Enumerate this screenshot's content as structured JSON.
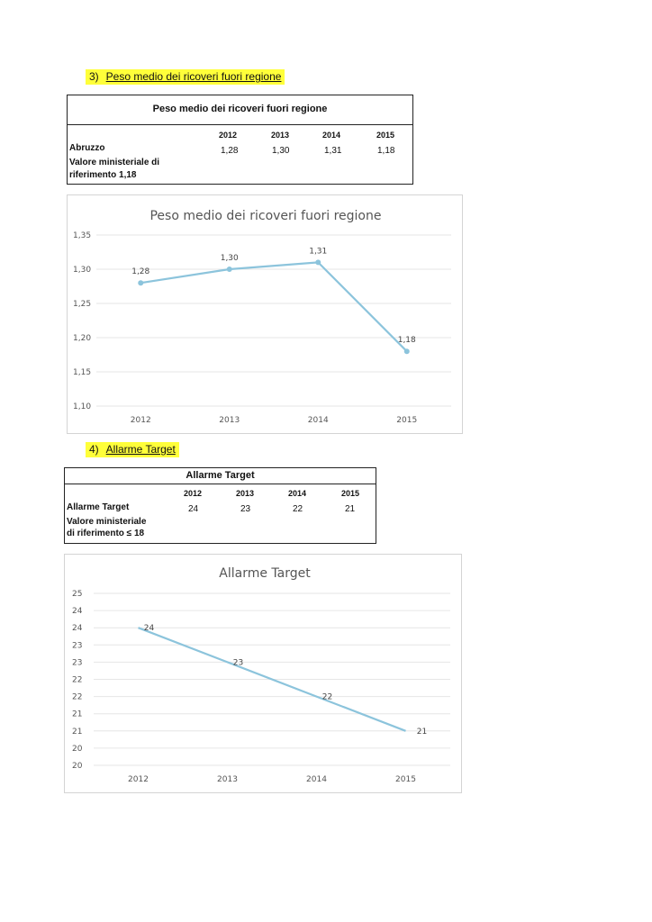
{
  "section3": {
    "number": "3)",
    "title": "Peso medio dei ricoveri fuori regione",
    "table": {
      "title": "Peso medio dei ricoveri fuori regione",
      "years": [
        "2012",
        "2013",
        "2014",
        "2015"
      ],
      "row_label": "Abruzzo",
      "row_values": [
        "1,28",
        "1,30",
        "1,31",
        "1,18"
      ],
      "ref_label_1": "Valore ministeriale di",
      "ref_label_2": "riferimento 1,18"
    }
  },
  "section4": {
    "number": "4)",
    "title": "Allarme Target",
    "table": {
      "title": "Allarme Target",
      "years": [
        "2012",
        "2013",
        "2014",
        "2015"
      ],
      "row_label": "Allarme Target",
      "row_values": [
        "24",
        "23",
        "22",
        "21"
      ],
      "ref_label_1": "Valore ministeriale",
      "ref_label_2": "di riferimento ≤ 18"
    }
  },
  "chart_data": [
    {
      "type": "line",
      "title": "Peso medio dei ricoveri fuori regione",
      "categories": [
        "2012",
        "2013",
        "2014",
        "2015"
      ],
      "values": [
        1.28,
        1.3,
        1.31,
        1.18
      ],
      "data_labels": [
        "1,28",
        "1,30",
        "1,31",
        "1,18"
      ],
      "yticks": [
        1.35,
        1.3,
        1.25,
        1.2,
        1.15,
        1.1
      ],
      "ytick_labels": [
        "1,35",
        "1,30",
        "1,25",
        "1,20",
        "1,15",
        "1,10"
      ],
      "ylim": [
        1.1,
        1.35
      ],
      "grid": true,
      "markers": true,
      "color": "#8cc4dc"
    },
    {
      "type": "line",
      "title": "Allarme Target",
      "categories": [
        "2012",
        "2013",
        "2014",
        "2015"
      ],
      "values": [
        24,
        23,
        22,
        21
      ],
      "data_labels": [
        "24",
        "23",
        "22",
        "21"
      ],
      "ytick_labels": [
        "25",
        "24",
        "24",
        "23",
        "23",
        "22",
        "22",
        "21",
        "21",
        "20",
        "20"
      ],
      "ylim": [
        20,
        25
      ],
      "grid": true,
      "markers": false,
      "color": "#8cc4dc"
    }
  ]
}
